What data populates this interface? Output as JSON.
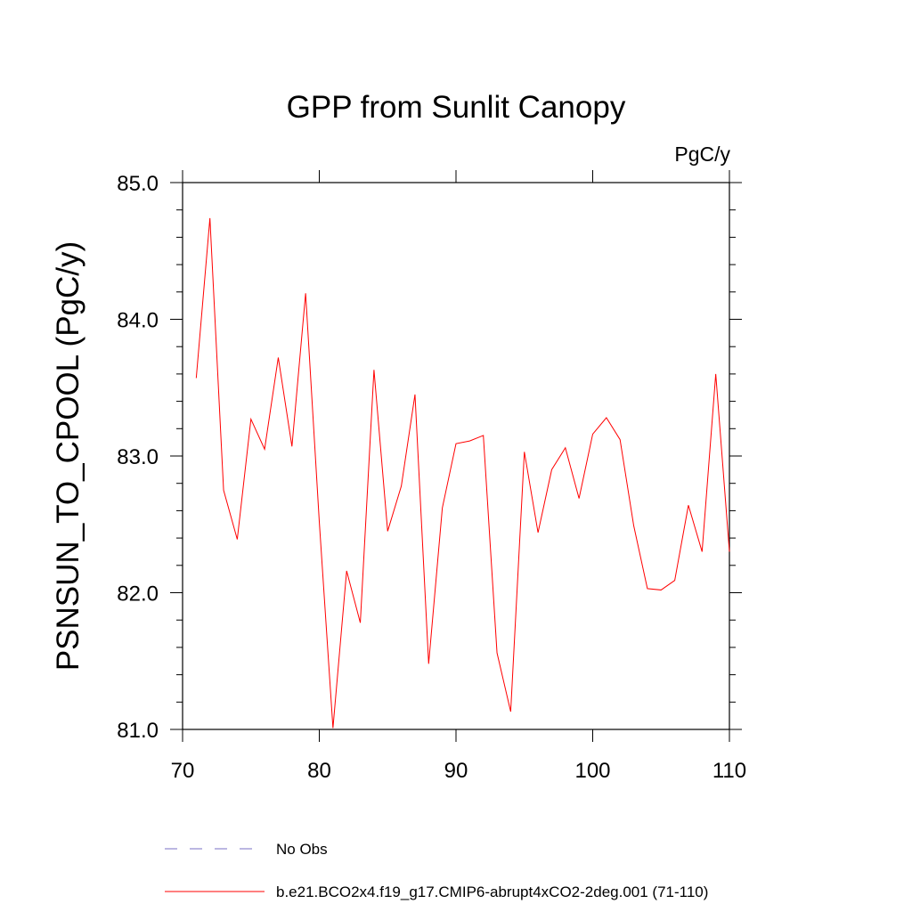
{
  "chart_data": {
    "type": "line",
    "title": "GPP from Sunlit Canopy",
    "units_label": "PgC/y",
    "xlabel": "",
    "ylabel": "PSNSUN_TO_CPOOL  (PgC/y)",
    "xlim": [
      70,
      110
    ],
    "ylim": [
      81.0,
      85.0
    ],
    "x_ticks": [
      70,
      80,
      90,
      100,
      110
    ],
    "x_tick_labels": [
      "70",
      "80",
      "90",
      "100",
      "110"
    ],
    "y_ticks": [
      81.0,
      82.0,
      83.0,
      84.0,
      85.0
    ],
    "y_tick_labels": [
      "81.0",
      "82.0",
      "83.0",
      "84.0",
      "85.0"
    ],
    "series": [
      {
        "name": "b.e21.BCO2x4.f19_g17.CMIP6-abrupt4xCO2-2deg.001 (71-110)",
        "color": "#ff0000",
        "style": "solid",
        "x": [
          71,
          72,
          73,
          74,
          75,
          76,
          77,
          78,
          79,
          80,
          81,
          82,
          83,
          84,
          85,
          86,
          87,
          88,
          89,
          90,
          91,
          92,
          93,
          94,
          95,
          96,
          97,
          98,
          99,
          100,
          101,
          102,
          103,
          104,
          105,
          106,
          107,
          108,
          109,
          110
        ],
        "values": [
          83.57,
          84.74,
          82.75,
          82.39,
          83.27,
          83.05,
          83.72,
          83.07,
          84.19,
          82.52,
          81.01,
          82.16,
          81.78,
          83.63,
          82.45,
          82.78,
          83.45,
          81.48,
          82.62,
          83.09,
          83.11,
          83.15,
          81.56,
          81.13,
          83.03,
          82.44,
          82.9,
          83.06,
          82.69,
          83.16,
          83.28,
          83.12,
          82.49,
          82.03,
          82.02,
          82.09,
          82.64,
          82.3,
          83.6,
          82.3
        ]
      }
    ],
    "legend": [
      {
        "label": "No Obs",
        "color": "#7a6fc4",
        "style": "dashed"
      },
      {
        "label": "b.e21.BCO2x4.f19_g17.CMIP6-abrupt4xCO2-2deg.001 (71-110)",
        "color": "#ff0000",
        "style": "solid"
      }
    ],
    "legend_position": "bottom"
  }
}
